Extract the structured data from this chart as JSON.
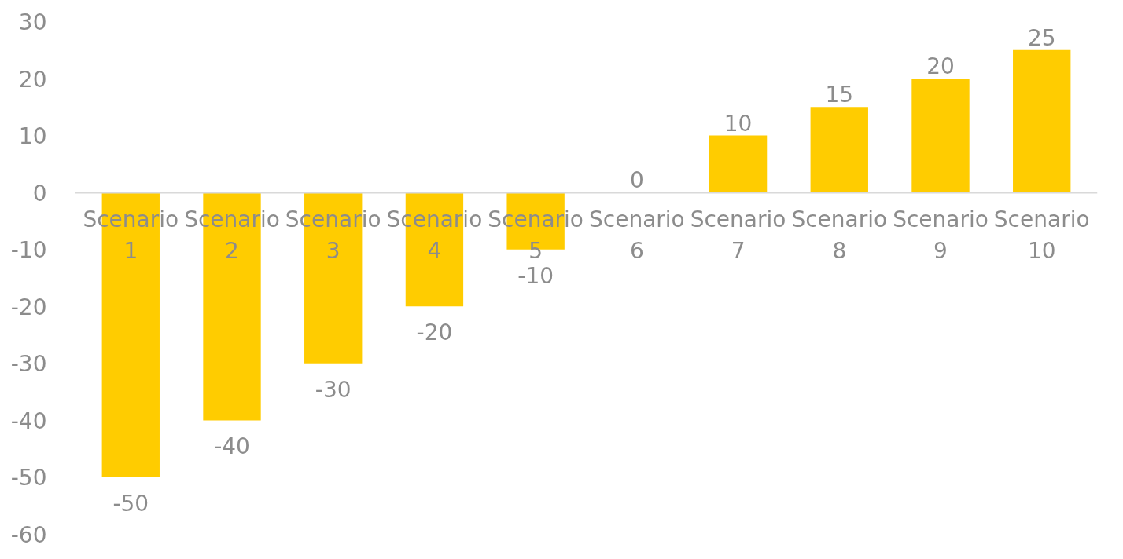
{
  "chart_data": {
    "type": "bar",
    "categories": [
      "Scenario 1",
      "Scenario 2",
      "Scenario 3",
      "Scenario 4",
      "Scenario 5",
      "Scenario 6",
      "Scenario 7",
      "Scenario 8",
      "Scenario 9",
      "Scenario 10"
    ],
    "values": [
      -50,
      -40,
      -30,
      -20,
      -10,
      0,
      10,
      15,
      20,
      25
    ],
    "color": "#ffcc00",
    "ylim": [
      -60,
      30
    ],
    "yticks": [
      -60,
      -50,
      -40,
      -30,
      -20,
      -10,
      0,
      10,
      20,
      30
    ],
    "grid": false,
    "data_labels": true
  }
}
